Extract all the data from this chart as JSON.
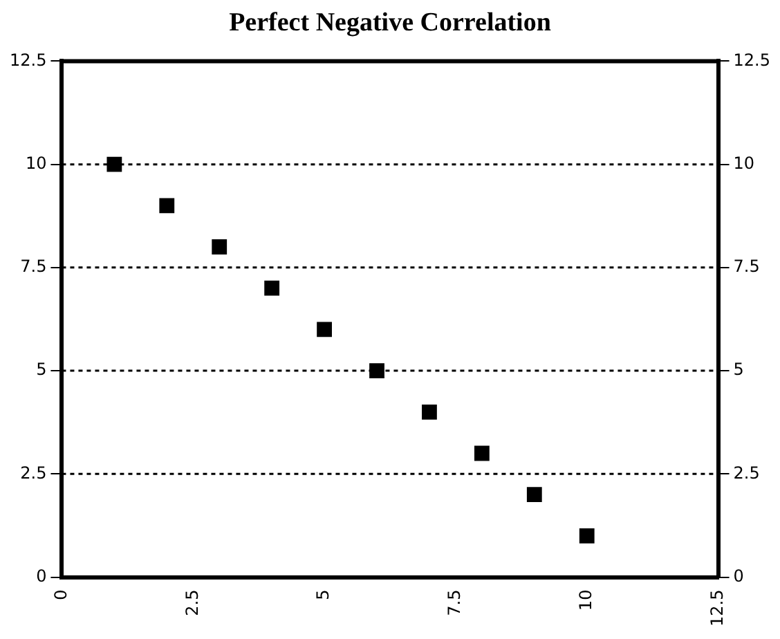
{
  "chart_data": {
    "type": "scatter",
    "title": "Perfect Negative Correlation",
    "x": [
      1,
      2,
      3,
      4,
      5,
      6,
      7,
      8,
      9,
      10
    ],
    "series": [
      {
        "color": "#000000",
        "values": [
          10,
          9,
          8,
          7,
          6,
          5,
          4,
          3,
          2,
          1
        ]
      }
    ],
    "xlim": [
      0,
      12.5
    ],
    "xticks": [
      0,
      2.5,
      5,
      7.5,
      10,
      12.5
    ],
    "ylim": [
      0,
      12.5
    ],
    "yticks": [
      0,
      2.5,
      5,
      7.5,
      10,
      12.5
    ],
    "y2lim": [
      0,
      12.5
    ],
    "y2ticks": [
      0,
      2.5,
      5,
      7.5,
      10,
      12.5
    ],
    "grid": "y",
    "marker": "square",
    "legend": false
  }
}
